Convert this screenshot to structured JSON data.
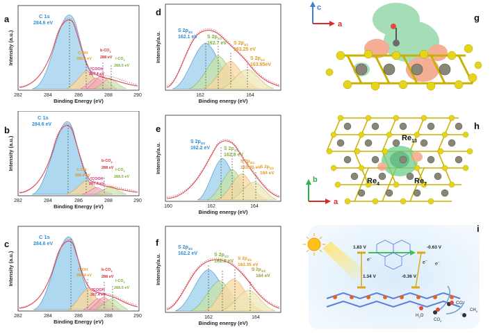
{
  "panel_labels": {
    "a": "a",
    "b": "b",
    "c": "c",
    "d": "d",
    "e": "e",
    "f": "f",
    "g": "g",
    "h": "h",
    "i": "i"
  },
  "c1s_axes": {
    "xlabel": "Binding Energy (eV)",
    "ylabel": "Intensity (a.u.)",
    "xticks": [
      "282",
      "284",
      "286",
      "288",
      "290"
    ]
  },
  "s2p_axes": {
    "xlabel_d": "Binding energy (eV)",
    "xlabel_e": "Binding energy (eV)",
    "xlabel_f": "Binding energy (eV)",
    "ylabel": "Intensity/a.u.",
    "xticks_d": [
      "162",
      "164"
    ],
    "xticks_e": [
      "160",
      "162",
      "164"
    ],
    "xticks_f": [
      "162",
      "164"
    ]
  },
  "c1s_labels": {
    "main": "C 1s",
    "main_ev": "284.6 eV",
    "coh": "C-OH",
    "coh_ev": "286.4 eV",
    "cooh": "*COOH",
    "cooh_ev": "287.4 eV",
    "bco2": "b-CO",
    "bco2_sub": "2",
    "bco2_ev": "288 eV",
    "lco2": "l-CO",
    "lco2_sub": "2",
    "lco2_ev": "288.5 eV"
  },
  "s2p_d": {
    "p1": "S 2p",
    "p1_sub": "3/2",
    "p1_ev": "162.1 eV",
    "p2": "S 2p",
    "p2_sub": "1/2",
    "p2_ev": "162.7 eV",
    "p3": "S 2p",
    "p3_sub": "3/2",
    "p3_ev": "163.25 eV",
    "p4": "S 2p",
    "p4_sub": "1/2",
    "p4_ev": "163.85eV"
  },
  "s2p_e": {
    "p1": "S 2p",
    "p1_sub": "3/2",
    "p1_ev": "162.2 eV",
    "p2": "S 2p",
    "p2_sub": "1/2",
    "p2_ev": "162.8 eV",
    "p3": "S 2p",
    "p3_sub": "3/2",
    "p3_ev": "163.35 eV",
    "p4": "S 2p",
    "p4_sub": "1/2",
    "p4_ev": "164 eV"
  },
  "s2p_f": {
    "p1": "S 2p",
    "p1_sub": "3/2",
    "p1_ev": "162.2 eV",
    "p2": "S 2p",
    "p2_sub": "1/2",
    "p2_ev": "162.8 eV",
    "p3": "S 2p",
    "p3_sub": "3/2",
    "p3_ev": "163.35 eV",
    "p4": "S 2p",
    "p4_sub": "1/2",
    "p4_ev": "164 eV"
  },
  "panel_g": {
    "axis_c": "c",
    "axis_a": "a"
  },
  "panel_h": {
    "axis_b": "b",
    "axis_a": "a",
    "re13": "Re",
    "re13_sub": "13",
    "re4": "Re",
    "re4_sub": "4",
    "re7": "Re",
    "re7_sub": "7"
  },
  "panel_i": {
    "v1": "1.83 V",
    "v2": "-0.63 V",
    "v3": "1.34 V",
    "v4": "-0.36 V",
    "e1": "e",
    "e2": "e",
    "e3": "e",
    "h2o": "H",
    "h2o_sub": "2",
    "h2o_end": "O",
    "co": "CO",
    "co2": "CO",
    "co2_sub": "2",
    "ch4": "CH",
    "ch4_sub": "4"
  },
  "colors": {
    "blue_fill": "#aed8f0",
    "orange_fill": "#f7d9a3",
    "pink": "#e36bb0",
    "red": "#d32d2d",
    "green": "#8fc05a",
    "envelope": "#d93b4a",
    "data_points": "#d96b78",
    "olive": "#b3a93a"
  }
}
